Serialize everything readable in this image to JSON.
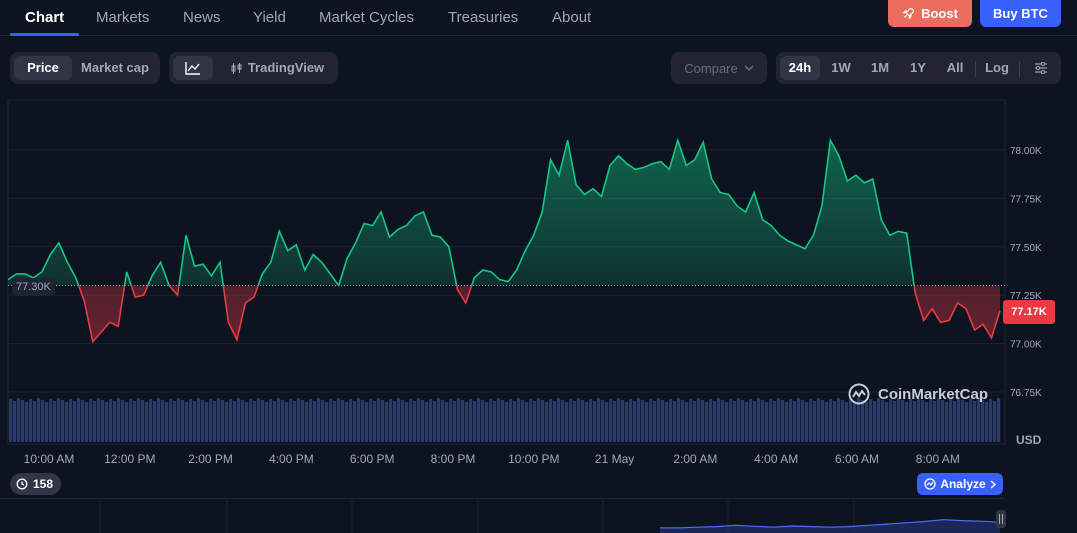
{
  "nav": {
    "tabs": [
      {
        "label": "Chart"
      },
      {
        "label": "Markets"
      },
      {
        "label": "News"
      },
      {
        "label": "Yield"
      },
      {
        "label": "Market Cycles"
      },
      {
        "label": "Treasuries"
      },
      {
        "label": "About"
      }
    ],
    "boost_label": "Boost",
    "buy_label": "Buy BTC"
  },
  "toolbar": {
    "price_label": "Price",
    "marketcap_label": "Market cap",
    "tradingview_label": "TradingView",
    "compare_label": "Compare",
    "ranges": [
      "24h",
      "1W",
      "1M",
      "1Y",
      "All"
    ],
    "active_range": "24h",
    "log_label": "Log"
  },
  "chart": {
    "open_badge": "77.30K",
    "current_badge": "77.17K",
    "currency": "USD",
    "watermark": "CoinMarketCap",
    "events_count": "158",
    "analyze_label": "Analyze",
    "colors": {
      "up": "#16c784",
      "down": "#ea3943",
      "volume": "#2a3a6b",
      "background": "#0d1421"
    }
  },
  "chart_data": {
    "type": "line",
    "x_ticks": [
      "10:00 AM",
      "12:00 PM",
      "2:00 PM",
      "4:00 PM",
      "6:00 PM",
      "8:00 PM",
      "10:00 PM",
      "21 May",
      "2:00 AM",
      "4:00 AM",
      "6:00 AM",
      "8:00 AM"
    ],
    "y_ticks": [
      "78.00K",
      "77.75K",
      "77.50K",
      "77.25K",
      "77.00K",
      "76.75K"
    ],
    "ylim": [
      76.75,
      78.0
    ],
    "baseline": 77.3,
    "series": [
      {
        "values": [
          77.33,
          77.36,
          77.36,
          77.34,
          77.37,
          77.46,
          77.52,
          77.42,
          77.34,
          77.22,
          77.01,
          77.06,
          77.11,
          77.09,
          77.37,
          77.24,
          77.25,
          77.35,
          77.42,
          77.3,
          77.25,
          77.56,
          77.4,
          77.41,
          77.35,
          77.42,
          77.11,
          77.02,
          77.21,
          77.24,
          77.36,
          77.42,
          77.58,
          77.48,
          77.51,
          77.38,
          77.46,
          77.42,
          77.36,
          77.3,
          77.44,
          77.52,
          77.62,
          77.61,
          77.68,
          77.55,
          77.59,
          77.61,
          77.66,
          77.68,
          77.56,
          77.55,
          77.5,
          77.28,
          77.21,
          77.34,
          77.38,
          77.37,
          77.33,
          77.32,
          77.38,
          77.48,
          77.56,
          77.68,
          77.95,
          77.87,
          78.05,
          77.82,
          77.77,
          77.8,
          77.76,
          77.92,
          77.97,
          77.93,
          77.9,
          77.91,
          77.93,
          77.94,
          77.9,
          78.05,
          77.92,
          77.95,
          78.04,
          77.85,
          77.78,
          77.77,
          77.71,
          77.68,
          77.78,
          77.64,
          77.61,
          77.56,
          77.53,
          77.51,
          77.49,
          77.56,
          77.71,
          78.05,
          77.97,
          77.84,
          77.87,
          77.83,
          77.85,
          77.64,
          77.56,
          77.58,
          77.57,
          77.26,
          77.12,
          77.18,
          77.11,
          77.12,
          77.21,
          77.18,
          77.07,
          77.1,
          77.03,
          77.17
        ]
      }
    ],
    "volume": "flat"
  },
  "navigator": {
    "values": [
      0.1,
      0.1,
      0.12,
      0.14,
      0.18,
      0.15,
      0.12,
      0.16,
      0.14,
      0.12,
      0.14,
      0.18,
      0.22,
      0.26,
      0.3,
      0.36,
      0.33,
      0.31,
      0.28
    ]
  }
}
